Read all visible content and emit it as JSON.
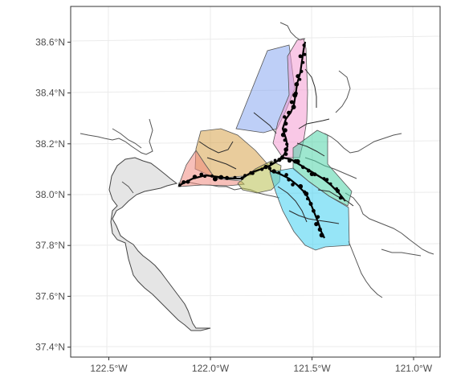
{
  "map": {
    "x_ticks": [
      {
        "value": -122.5,
        "label": "122.5°W"
      },
      {
        "value": -122.0,
        "label": "122.0°W"
      },
      {
        "value": -121.5,
        "label": "121.5°W"
      },
      {
        "value": -121.0,
        "label": "121.0°W"
      }
    ],
    "y_ticks": [
      {
        "value": 37.4,
        "label": "37.4°N"
      },
      {
        "value": 37.6,
        "label": "37.6°N"
      },
      {
        "value": 37.8,
        "label": "37.8°N"
      },
      {
        "value": 38.0,
        "label": "38.0°N"
      },
      {
        "value": 38.2,
        "label": "38.2°N"
      },
      {
        "value": 38.4,
        "label": "38.4°N"
      },
      {
        "value": 38.6,
        "label": "38.6°N"
      }
    ],
    "colors": {
      "blue_region": "#88a8f0",
      "pink_region": "#f49ad2",
      "orange_region": "#d7a24a",
      "salmon_region": "#f08a80",
      "olive_region": "#b8c050",
      "green_region": "#4fd3a8",
      "cyan_region": "#3fd0f0",
      "bay_fill": "#e5e5e5"
    }
  }
}
